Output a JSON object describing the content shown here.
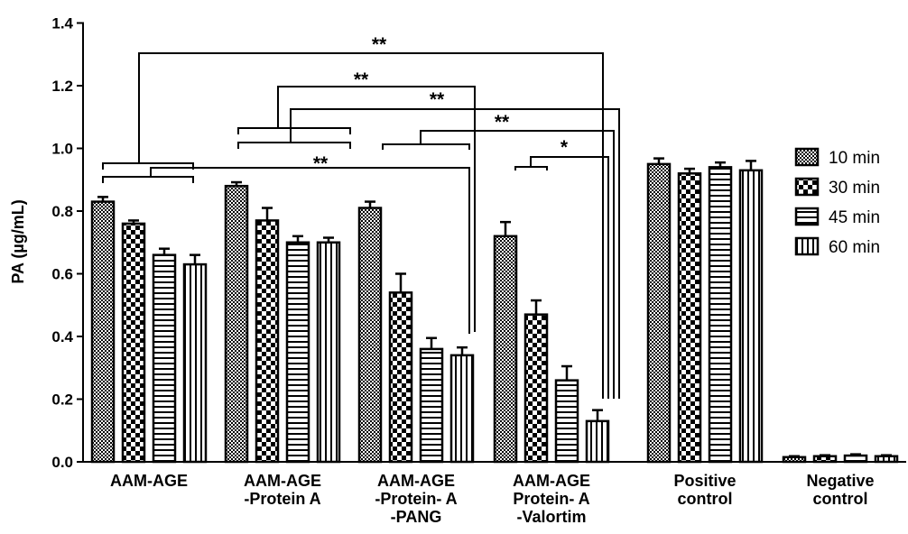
{
  "chart_data": {
    "type": "bar",
    "ylabel": "PA (µg/mL)",
    "xlabel": "",
    "ylim": [
      0,
      1.4
    ],
    "yticks": [
      "0.0",
      "0.2",
      "0.4",
      "0.6",
      "0.8",
      "1.0",
      "1.2",
      "1.4"
    ],
    "categories": [
      [
        "AAM-AGE"
      ],
      [
        "AAM-AGE",
        "-Protein A"
      ],
      [
        "AAM-AGE",
        "-Protein- A",
        "-PANG"
      ],
      [
        "AAM-AGE",
        "Protein- A",
        "-Valortim"
      ],
      [
        "Positive",
        "control"
      ],
      [
        "Negative",
        "control"
      ]
    ],
    "series": [
      {
        "name": "10 min",
        "pattern": "dots",
        "values": [
          0.83,
          0.88,
          0.81,
          0.72,
          0.95,
          0.015
        ],
        "errors": [
          0.015,
          0.012,
          0.02,
          0.045,
          0.018,
          0.003
        ]
      },
      {
        "name": "30 min",
        "pattern": "checker",
        "values": [
          0.76,
          0.77,
          0.54,
          0.47,
          0.92,
          0.018
        ],
        "errors": [
          0.01,
          0.04,
          0.06,
          0.045,
          0.015,
          0.003
        ]
      },
      {
        "name": "45 min",
        "pattern": "hstripes",
        "values": [
          0.66,
          0.7,
          0.36,
          0.26,
          0.94,
          0.02
        ],
        "errors": [
          0.02,
          0.02,
          0.035,
          0.045,
          0.015,
          0.004
        ]
      },
      {
        "name": "60 min",
        "pattern": "vstripes",
        "values": [
          0.63,
          0.7,
          0.34,
          0.13,
          0.93,
          0.018
        ],
        "errors": [
          0.03,
          0.015,
          0.025,
          0.035,
          0.03,
          0.003
        ]
      }
    ],
    "significance": [
      {
        "label": "**"
      },
      {
        "label": "**"
      },
      {
        "label": "**"
      },
      {
        "label": "**"
      },
      {
        "label": "**"
      },
      {
        "label": "*"
      }
    ],
    "legend_position": "right",
    "grid": false
  }
}
